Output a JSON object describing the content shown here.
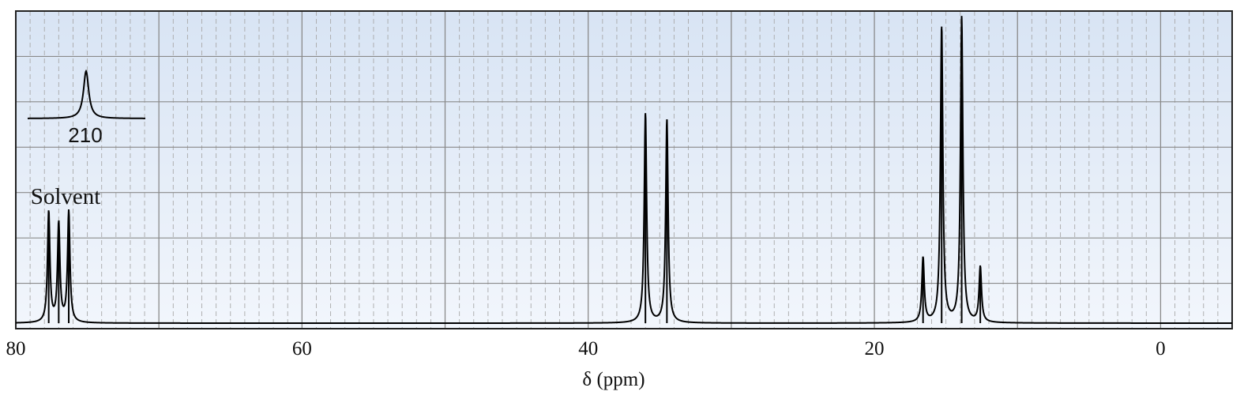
{
  "chart_data": {
    "type": "line",
    "title": "",
    "xlabel": "δ (ppm)",
    "ylabel": "",
    "xlim": [
      80,
      -5
    ],
    "ylim": [
      0,
      100
    ],
    "x_reversed": true,
    "grid": true,
    "x_ticks": [
      80,
      60,
      40,
      20,
      0
    ],
    "x_tick_labels": [
      "80",
      "60",
      "40",
      "20",
      "0"
    ],
    "baseline_segments": [
      [
        80,
        -5
      ]
    ],
    "peaks": [
      {
        "ppm": 77.7,
        "height": 36
      },
      {
        "ppm": 77.0,
        "height": 32
      },
      {
        "ppm": 76.3,
        "height": 36
      },
      {
        "ppm": 36.0,
        "height": 68
      },
      {
        "ppm": 34.5,
        "height": 66
      },
      {
        "ppm": 16.6,
        "height": 21
      },
      {
        "ppm": 15.3,
        "height": 96
      },
      {
        "ppm": 13.9,
        "height": 99
      },
      {
        "ppm": 12.6,
        "height": 18
      }
    ],
    "annotations": [
      {
        "text": "Solvent",
        "ppm": 77.0
      }
    ],
    "inset": {
      "label": "210",
      "peak_height": 16
    },
    "colors": {
      "band_light": "#f2f6fc",
      "band_dark": "#d8e4f4",
      "grid_major": "#8a8a8a",
      "grid_minor": "#a9a9a9",
      "trace": "#000000"
    }
  }
}
